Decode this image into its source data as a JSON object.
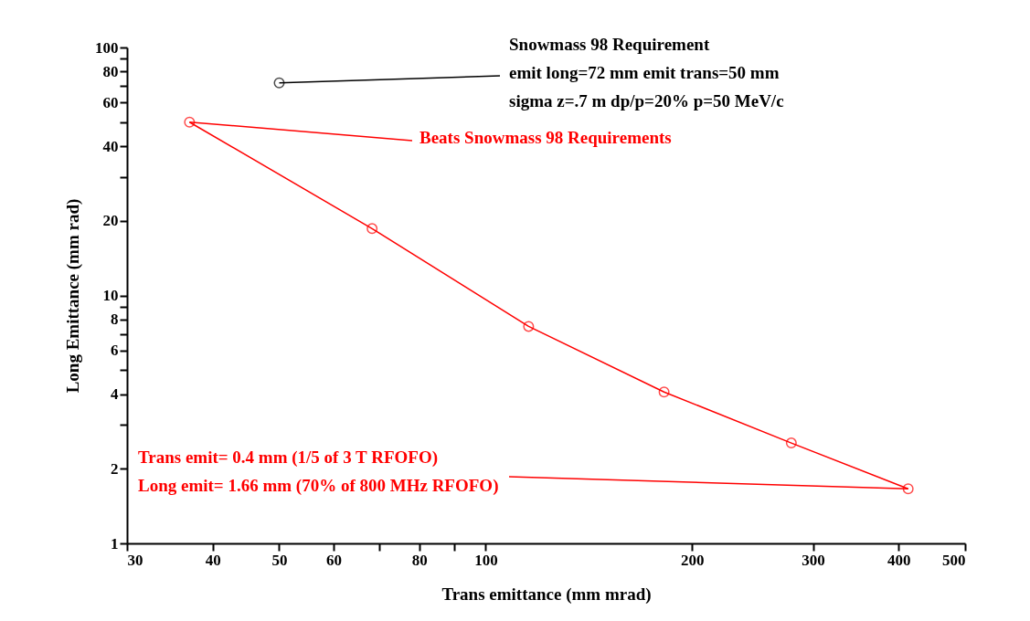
{
  "chart_data": {
    "type": "line",
    "xlabel": "Trans emittance  (mm mrad)",
    "ylabel": "Long Emittance (mm rad)",
    "log": "xy",
    "xlim": [
      30,
      500
    ],
    "ylim": [
      1,
      100
    ],
    "xticks": [
      30,
      40,
      50,
      60,
      {
        "value": 70,
        "label": null
      },
      80,
      {
        "value": 90,
        "label": null
      },
      100,
      200,
      300,
      400,
      500
    ],
    "yticks": [
      1,
      2,
      {
        "value": 3,
        "label": null
      },
      4,
      {
        "value": 5,
        "label": null
      },
      6,
      {
        "value": 7,
        "label": null
      },
      8,
      {
        "value": 9,
        "label": null
      },
      10,
      20,
      {
        "value": 30,
        "label": null
      },
      40,
      {
        "value": 50,
        "label": null
      },
      60,
      {
        "value": 70,
        "label": null
      },
      80,
      {
        "value": 90,
        "label": null
      },
      100
    ],
    "grid": false,
    "legend": false,
    "marker": "circle",
    "line_style": "solid",
    "series": [
      {
        "type": "scatter",
        "color": "#000000",
        "x": [
          50
        ],
        "values": [
          72
        ]
      },
      {
        "color": "#ff0000",
        "x": [
          37,
          68.3,
          115.5,
          182,
          279,
          413
        ],
        "values": [
          50,
          18.6,
          7.5,
          4.08,
          2.54,
          1.66
        ]
      }
    ],
    "annotations": [
      {
        "text": "Snowmass 98 Requirement\nemit long=72 mm  emit trans=50 mm\nsigma z=.7 m   dp/p=20%   p=50 MeV/c",
        "x": 50,
        "y": 72
      },
      {
        "text": "Beats Snowmass 98 Requirements",
        "x": 37,
        "y": 50
      },
      {
        "text": "Trans emit= 0.4 mm (1/5 of 3 T RFOFO)\nLong emit= 1.66 mm (70% of 800 MHz RFOFO)",
        "x": 413,
        "y": 1.66
      }
    ]
  }
}
